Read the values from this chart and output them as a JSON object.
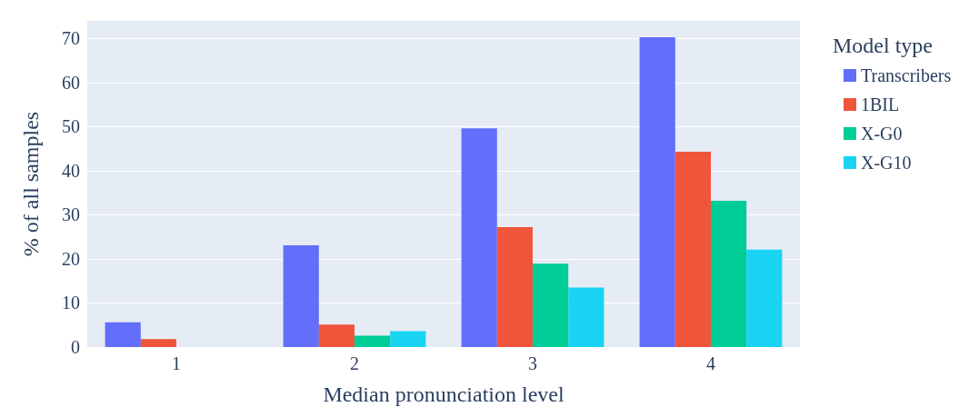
{
  "chart_data": {
    "type": "bar",
    "xlabel": "Median pronunciation level",
    "ylabel": "% of all samples",
    "legend_title": "Model type",
    "categories": [
      "1",
      "2",
      "3",
      "4"
    ],
    "series": [
      {
        "name": "Transcribers",
        "color": "#636efa",
        "values": [
          5.6,
          23.1,
          49.6,
          70.3
        ]
      },
      {
        "name": "1BIL",
        "color": "#ef553b",
        "values": [
          1.8,
          5.1,
          27.2,
          44.3
        ]
      },
      {
        "name": "X-G0",
        "color": "#00cc96",
        "values": [
          0,
          2.6,
          18.9,
          33.2
        ]
      },
      {
        "name": "X-G10",
        "color": "#19d3f3",
        "values": [
          0,
          3.6,
          13.5,
          22.1
        ]
      }
    ],
    "ylim": [
      0,
      74
    ],
    "yticks": [
      0,
      10,
      20,
      30,
      40,
      50,
      60,
      70
    ],
    "grid": "y",
    "legend": "top right"
  }
}
